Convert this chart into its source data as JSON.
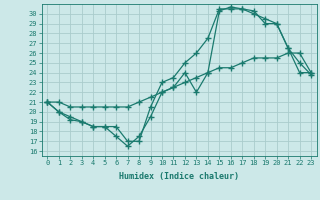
{
  "title": "",
  "xlabel": "Humidex (Indice chaleur)",
  "ylabel": "",
  "bg_color": "#cce8e8",
  "grid_color": "#aacccc",
  "line_color": "#1a7a6e",
  "xlim": [
    -0.5,
    23.5
  ],
  "ylim": [
    15.5,
    31.0
  ],
  "xticks": [
    0,
    1,
    2,
    3,
    4,
    5,
    6,
    7,
    8,
    9,
    10,
    11,
    12,
    13,
    14,
    15,
    16,
    17,
    18,
    19,
    20,
    21,
    22,
    23
  ],
  "yticks": [
    16,
    17,
    18,
    19,
    20,
    21,
    22,
    23,
    24,
    25,
    26,
    27,
    28,
    29,
    30
  ],
  "line1_x": [
    0,
    1,
    2,
    3,
    4,
    5,
    6,
    7,
    8,
    9,
    10,
    11,
    12,
    13,
    14,
    15,
    16,
    17,
    18,
    19,
    20,
    21,
    22,
    23
  ],
  "line1_y": [
    21.0,
    20.0,
    19.2,
    19.0,
    18.5,
    18.5,
    17.5,
    16.5,
    17.5,
    19.5,
    22.0,
    22.5,
    24.0,
    22.0,
    24.0,
    30.3,
    30.7,
    30.5,
    30.0,
    29.5,
    29.0,
    26.5,
    24.0,
    24.0
  ],
  "line2_x": [
    0,
    1,
    2,
    3,
    4,
    5,
    6,
    7,
    8,
    9,
    10,
    11,
    12,
    13,
    14,
    15,
    16,
    17,
    18,
    19,
    20,
    21,
    22,
    23
  ],
  "line2_y": [
    21.0,
    20.0,
    19.5,
    19.0,
    18.5,
    18.5,
    18.5,
    17.0,
    17.0,
    20.5,
    23.0,
    23.5,
    25.0,
    26.0,
    27.5,
    30.5,
    30.5,
    30.5,
    30.3,
    29.0,
    29.0,
    26.5,
    25.0,
    23.8
  ],
  "line3_x": [
    0,
    1,
    2,
    3,
    4,
    5,
    6,
    7,
    8,
    9,
    10,
    11,
    12,
    13,
    14,
    15,
    16,
    17,
    18,
    19,
    20,
    21,
    22,
    23
  ],
  "line3_y": [
    21.0,
    21.0,
    20.5,
    20.5,
    20.5,
    20.5,
    20.5,
    20.5,
    21.0,
    21.5,
    22.0,
    22.5,
    23.0,
    23.5,
    24.0,
    24.5,
    24.5,
    25.0,
    25.5,
    25.5,
    25.5,
    26.0,
    26.0,
    24.0
  ],
  "marker": "+",
  "markersize": 4,
  "markeredgewidth": 1.0,
  "linewidth": 0.9,
  "tick_labelsize": 5,
  "xlabel_fontsize": 6
}
